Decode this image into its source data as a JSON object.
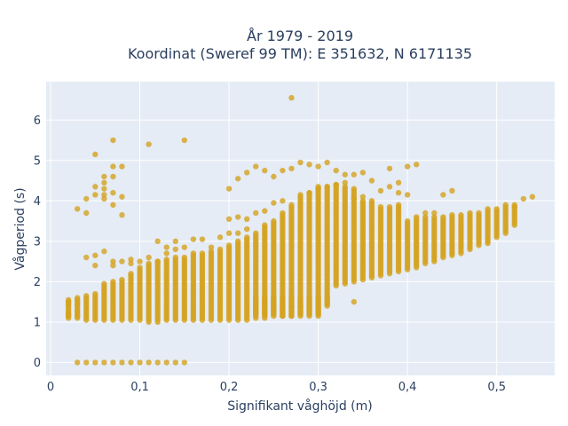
{
  "chart_data": {
    "type": "scatter",
    "title": [
      "År 1979 - 2019",
      "Koordinat (Sweref 99 TM): E 351632, N 6171135"
    ],
    "xlabel": "Signifikant våghöjd (m)",
    "ylabel": "Vågperiod (s)",
    "xlim": [
      -0.005,
      0.565
    ],
    "ylim": [
      -0.32,
      6.95
    ],
    "xticks": [
      0,
      0.1,
      0.2,
      0.3,
      0.4,
      0.5
    ],
    "xtick_labels": [
      "0",
      "0,1",
      "0,2",
      "0,3",
      "0,4",
      "0,5"
    ],
    "yticks": [
      0,
      1,
      2,
      3,
      4,
      5,
      6
    ],
    "ytick_labels": [
      "0",
      "1",
      "2",
      "3",
      "4",
      "5",
      "6"
    ],
    "grid": true,
    "marker_color": "#d4a21f",
    "background": "#e5ecf6",
    "points": [
      [
        0.02,
        1.5
      ],
      [
        0.02,
        1.45
      ],
      [
        0.02,
        1.2
      ],
      [
        0.02,
        1.15
      ],
      [
        0.03,
        1.55
      ],
      [
        0.03,
        1.45
      ],
      [
        0.03,
        1.25
      ],
      [
        0.03,
        1.15
      ],
      [
        0.03,
        3.8
      ],
      [
        0.03,
        0
      ],
      [
        0.04,
        4.05
      ],
      [
        0.04,
        3.7
      ],
      [
        0.04,
        2.6
      ],
      [
        0.04,
        0
      ],
      [
        0.05,
        5.15
      ],
      [
        0.05,
        4.35
      ],
      [
        0.05,
        4.15
      ],
      [
        0.05,
        2.65
      ],
      [
        0.05,
        2.4
      ],
      [
        0.05,
        0
      ],
      [
        0.06,
        4.6
      ],
      [
        0.06,
        4.45
      ],
      [
        0.06,
        4.3
      ],
      [
        0.06,
        4.15
      ],
      [
        0.06,
        4.05
      ],
      [
        0.06,
        2.75
      ],
      [
        0.06,
        0
      ],
      [
        0.07,
        5.5
      ],
      [
        0.07,
        4.85
      ],
      [
        0.07,
        4.6
      ],
      [
        0.07,
        4.2
      ],
      [
        0.07,
        3.9
      ],
      [
        0.07,
        2.5
      ],
      [
        0.07,
        2.4
      ],
      [
        0.07,
        0
      ],
      [
        0.08,
        4.85
      ],
      [
        0.08,
        4.1
      ],
      [
        0.08,
        3.65
      ],
      [
        0.08,
        2.5
      ],
      [
        0.08,
        0
      ],
      [
        0.09,
        2.55
      ],
      [
        0.09,
        2.45
      ],
      [
        0.09,
        0
      ],
      [
        0.1,
        2.5
      ],
      [
        0.1,
        2.35
      ],
      [
        0.1,
        0
      ],
      [
        0.11,
        5.4
      ],
      [
        0.11,
        2.6
      ],
      [
        0.11,
        0
      ],
      [
        0.12,
        3.0
      ],
      [
        0.12,
        2.5
      ],
      [
        0.12,
        0
      ],
      [
        0.13,
        2.85
      ],
      [
        0.13,
        2.7
      ],
      [
        0.13,
        0
      ],
      [
        0.14,
        3.0
      ],
      [
        0.14,
        2.8
      ],
      [
        0.14,
        0
      ],
      [
        0.15,
        5.5
      ],
      [
        0.15,
        2.85
      ],
      [
        0.15,
        0
      ],
      [
        0.16,
        3.05
      ],
      [
        0.17,
        3.05
      ],
      [
        0.18,
        2.85
      ],
      [
        0.19,
        3.1
      ],
      [
        0.2,
        4.3
      ],
      [
        0.2,
        3.55
      ],
      [
        0.2,
        3.2
      ],
      [
        0.21,
        4.55
      ],
      [
        0.21,
        3.6
      ],
      [
        0.21,
        3.2
      ],
      [
        0.22,
        4.7
      ],
      [
        0.22,
        3.55
      ],
      [
        0.22,
        3.3
      ],
      [
        0.23,
        4.85
      ],
      [
        0.23,
        3.7
      ],
      [
        0.24,
        4.75
      ],
      [
        0.24,
        3.75
      ],
      [
        0.25,
        4.6
      ],
      [
        0.25,
        3.95
      ],
      [
        0.26,
        4.75
      ],
      [
        0.26,
        4.0
      ],
      [
        0.27,
        6.55
      ],
      [
        0.27,
        4.8
      ],
      [
        0.28,
        4.95
      ],
      [
        0.28,
        4.15
      ],
      [
        0.29,
        4.9
      ],
      [
        0.29,
        4.2
      ],
      [
        0.3,
        4.85
      ],
      [
        0.3,
        4.3
      ],
      [
        0.31,
        4.95
      ],
      [
        0.31,
        4.35
      ],
      [
        0.32,
        4.75
      ],
      [
        0.32,
        4.4
      ],
      [
        0.33,
        4.65
      ],
      [
        0.33,
        4.45
      ],
      [
        0.34,
        4.65
      ],
      [
        0.34,
        4.05
      ],
      [
        0.35,
        4.7
      ],
      [
        0.35,
        4.1
      ],
      [
        0.36,
        4.5
      ],
      [
        0.37,
        4.25
      ],
      [
        0.38,
        4.8
      ],
      [
        0.38,
        4.35
      ],
      [
        0.39,
        4.2
      ],
      [
        0.39,
        4.45
      ],
      [
        0.4,
        4.15
      ],
      [
        0.4,
        4.85
      ],
      [
        0.41,
        4.9
      ],
      [
        0.42,
        3.7
      ],
      [
        0.43,
        3.7
      ],
      [
        0.44,
        4.15
      ],
      [
        0.45,
        4.25
      ],
      [
        0.28,
        1.25
      ],
      [
        0.34,
        1.5
      ],
      [
        0.53,
        4.05
      ],
      [
        0.54,
        4.1
      ],
      [
        0.52,
        3.85
      ]
    ],
    "columns": [
      [
        0.02,
        1.1,
        1.55
      ],
      [
        0.03,
        1.1,
        1.6
      ],
      [
        0.04,
        1.05,
        1.65
      ],
      [
        0.05,
        1.05,
        1.7
      ],
      [
        0.06,
        1.05,
        1.95
      ],
      [
        0.07,
        1.05,
        2.0
      ],
      [
        0.08,
        1.05,
        2.05
      ],
      [
        0.09,
        1.05,
        2.2
      ],
      [
        0.1,
        1.05,
        2.3
      ],
      [
        0.11,
        1.0,
        2.45
      ],
      [
        0.12,
        1.0,
        2.5
      ],
      [
        0.13,
        1.05,
        2.55
      ],
      [
        0.14,
        1.05,
        2.6
      ],
      [
        0.15,
        1.05,
        2.6
      ],
      [
        0.16,
        1.05,
        2.7
      ],
      [
        0.17,
        1.05,
        2.7
      ],
      [
        0.18,
        1.05,
        2.75
      ],
      [
        0.19,
        1.05,
        2.8
      ],
      [
        0.2,
        1.05,
        2.9
      ],
      [
        0.21,
        1.05,
        3.0
      ],
      [
        0.22,
        1.05,
        3.1
      ],
      [
        0.23,
        1.2,
        3.2
      ],
      [
        0.24,
        1.2,
        3.4
      ],
      [
        0.25,
        1.2,
        3.5
      ],
      [
        0.26,
        1.15,
        3.7
      ],
      [
        0.27,
        1.15,
        3.9
      ],
      [
        0.28,
        1.15,
        4.1
      ],
      [
        0.29,
        1.15,
        4.2
      ],
      [
        0.3,
        1.15,
        4.35
      ],
      [
        0.31,
        1.4,
        4.35
      ],
      [
        0.32,
        1.9,
        4.4
      ],
      [
        0.33,
        1.95,
        4.35
      ],
      [
        0.34,
        2.0,
        4.3
      ],
      [
        0.35,
        2.05,
        4.0
      ],
      [
        0.36,
        2.1,
        4.0
      ],
      [
        0.37,
        2.15,
        3.85
      ],
      [
        0.38,
        2.2,
        3.85
      ],
      [
        0.39,
        2.25,
        3.9
      ],
      [
        0.4,
        2.3,
        3.5
      ],
      [
        0.41,
        2.35,
        3.6
      ],
      [
        0.42,
        2.45,
        3.6
      ],
      [
        0.43,
        2.5,
        3.6
      ],
      [
        0.44,
        2.6,
        3.6
      ],
      [
        0.45,
        2.65,
        3.65
      ],
      [
        0.46,
        2.7,
        3.65
      ],
      [
        0.47,
        2.8,
        3.7
      ],
      [
        0.48,
        2.9,
        3.7
      ],
      [
        0.49,
        2.95,
        3.8
      ],
      [
        0.5,
        3.1,
        3.8
      ],
      [
        0.51,
        3.2,
        3.9
      ],
      [
        0.52,
        3.4,
        3.9
      ]
    ],
    "columns_low_band": [
      [
        0.23,
        1.1,
        1.6
      ],
      [
        0.24,
        1.1,
        1.6
      ],
      [
        0.25,
        1.15,
        1.6
      ],
      [
        0.26,
        1.15,
        1.6
      ],
      [
        0.27,
        1.15,
        1.6
      ],
      [
        0.28,
        1.2,
        1.6
      ],
      [
        0.29,
        1.2,
        1.6
      ],
      [
        0.3,
        1.2,
        1.6
      ],
      [
        0.31,
        1.45,
        1.6
      ]
    ]
  }
}
